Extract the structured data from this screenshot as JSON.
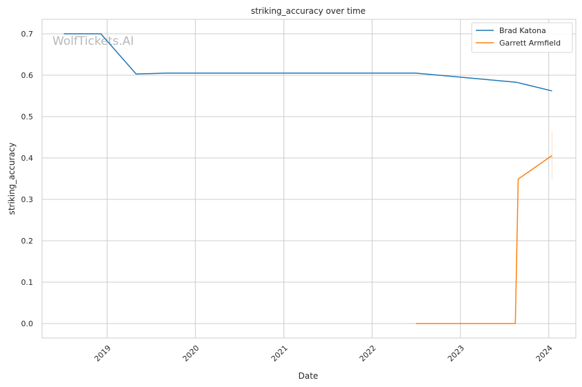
{
  "chart_data": {
    "type": "line",
    "title": "striking_accuracy over time",
    "xlabel": "Date",
    "ylabel": "striking_accuracy",
    "watermark": "WolfTickets.AI",
    "x_type": "date",
    "xlim": [
      "2018-04-07",
      "2024-04-22"
    ],
    "ylim": [
      -0.035,
      0.735
    ],
    "x_ticks": [
      {
        "date": "2019-01-01",
        "label": "2019"
      },
      {
        "date": "2020-01-01",
        "label": "2020"
      },
      {
        "date": "2021-01-01",
        "label": "2021"
      },
      {
        "date": "2022-01-01",
        "label": "2022"
      },
      {
        "date": "2023-01-01",
        "label": "2023"
      },
      {
        "date": "2024-01-01",
        "label": "2024"
      }
    ],
    "y_ticks": [
      {
        "value": 0.0,
        "label": "0.0"
      },
      {
        "value": 0.1,
        "label": "0.1"
      },
      {
        "value": 0.2,
        "label": "0.2"
      },
      {
        "value": 0.3,
        "label": "0.3"
      },
      {
        "value": 0.4,
        "label": "0.4"
      },
      {
        "value": 0.5,
        "label": "0.5"
      },
      {
        "value": 0.6,
        "label": "0.6"
      },
      {
        "value": 0.7,
        "label": "0.7"
      }
    ],
    "grid": true,
    "legend_position": "top-right",
    "series": [
      {
        "name": "Brad Katona",
        "color": "#1f77b4",
        "points": [
          {
            "x": "2018-07-06",
            "y": 0.7
          },
          {
            "x": "2018-12-06",
            "y": 0.7
          },
          {
            "x": "2019-05-01",
            "y": 0.603
          },
          {
            "x": "2019-09-01",
            "y": 0.605
          },
          {
            "x": "2022-07-01",
            "y": 0.605
          },
          {
            "x": "2023-08-20",
            "y": 0.583
          },
          {
            "x": "2024-01-15",
            "y": 0.562
          }
        ]
      },
      {
        "name": "Garrett Armfield",
        "color": "#ff7f0e",
        "points": [
          {
            "x": "2022-07-01",
            "y": 0.0
          },
          {
            "x": "2023-08-16",
            "y": 0.0
          },
          {
            "x": "2023-08-28",
            "y": 0.349
          },
          {
            "x": "2024-01-15",
            "y": 0.406
          }
        ],
        "error_band": {
          "x": "2024-01-15",
          "low": 0.348,
          "high": 0.464
        }
      }
    ]
  }
}
